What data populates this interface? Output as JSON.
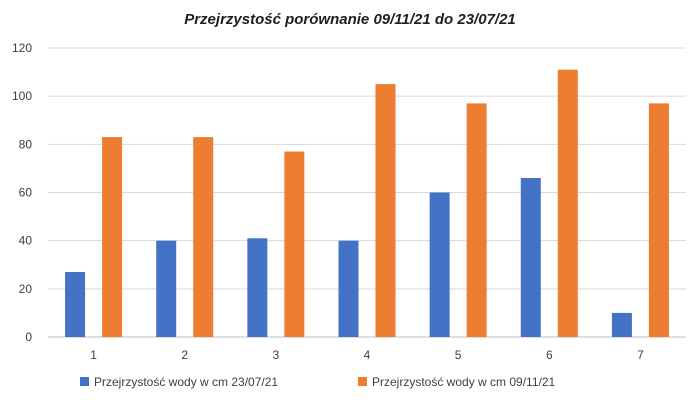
{
  "chart_data": {
    "type": "bar",
    "title": "Przejrzystość porównanie 09/11/21  do 23/07/21",
    "xlabel": "",
    "ylabel": "",
    "categories": [
      "1",
      "2",
      "3",
      "4",
      "5",
      "6",
      "7"
    ],
    "ylim": [
      0,
      120
    ],
    "yticks": [
      0,
      20,
      40,
      60,
      80,
      100,
      120
    ],
    "grid": true,
    "legend_position": "bottom",
    "series": [
      {
        "name": "Przejrzystość wody w cm 23/07/21",
        "color": "#4472C4",
        "values": [
          27,
          40,
          41,
          40,
          60,
          66,
          10
        ]
      },
      {
        "name": "Przejrzystość wody w cm 09/11/21",
        "color": "#ED7D31",
        "values": [
          83,
          83,
          77,
          105,
          97,
          111,
          97
        ]
      }
    ]
  }
}
